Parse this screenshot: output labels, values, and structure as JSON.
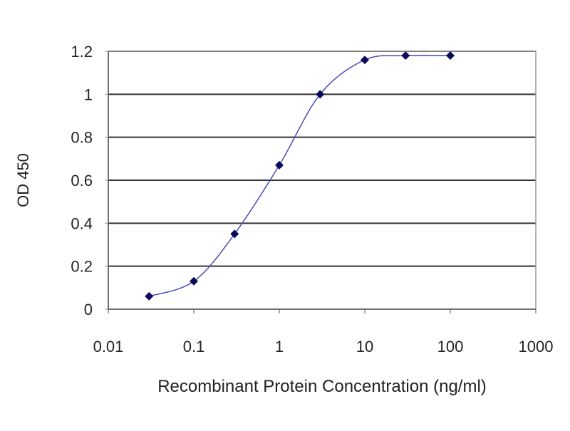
{
  "chart_data": {
    "type": "line",
    "title": "",
    "xlabel": "Recombinant Protein Concentration (ng/ml)",
    "ylabel": "OD 450",
    "x_scale": "log",
    "xlim": [
      0.01,
      1000
    ],
    "ylim": [
      0,
      1.2
    ],
    "x_ticks": [
      "0.01",
      "0.1",
      "1",
      "10",
      "100",
      "1000"
    ],
    "y_ticks": [
      "0",
      "0.2",
      "0.4",
      "0.6",
      "0.8",
      "1",
      "1.2"
    ],
    "grid": "horizontal",
    "series": [
      {
        "x": [
          0.03,
          0.1,
          0.3,
          1,
          3,
          10,
          30,
          100
        ],
        "y": [
          0.06,
          0.13,
          0.35,
          0.67,
          1.0,
          1.16,
          1.18,
          1.18
        ]
      }
    ],
    "colors": {
      "line": "#4a4ab8",
      "marker": "#0a0a5a",
      "grid": "#333333",
      "frame": "#999999"
    }
  }
}
